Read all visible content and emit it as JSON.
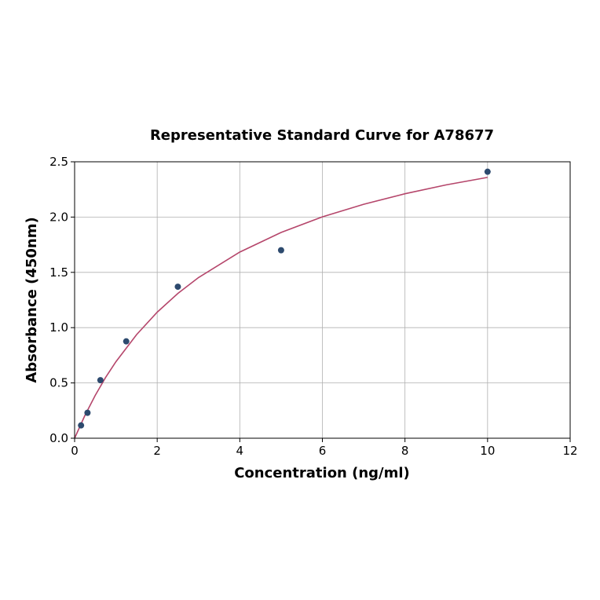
{
  "chart_data": {
    "type": "scatter",
    "title": "Representative Standard Curve for A78677",
    "xlabel": "Concentration (ng/ml)",
    "ylabel": "Absorbance (450nm)",
    "xlim": [
      0,
      12
    ],
    "ylim": [
      0,
      2.5
    ],
    "xticks": [
      "0",
      "2",
      "4",
      "6",
      "8",
      "10",
      "12"
    ],
    "yticks": [
      "0.0",
      "0.5",
      "1.0",
      "1.5",
      "2.0",
      "2.5"
    ],
    "grid": true,
    "legend": "none",
    "points": {
      "color": "#2d4a6e",
      "x": [
        0.156,
        0.312,
        0.625,
        1.25,
        2.5,
        5,
        10
      ],
      "y": [
        0.116,
        0.23,
        0.525,
        0.876,
        1.37,
        1.7,
        2.41
      ]
    },
    "fit_curve": {
      "color": "#b5466b",
      "x": [
        0,
        0.25,
        0.5,
        0.75,
        1,
        1.5,
        2,
        2.5,
        3,
        4,
        5,
        6,
        7,
        8,
        9,
        10
      ],
      "y": [
        0,
        0.206,
        0.388,
        0.549,
        0.692,
        0.937,
        1.14,
        1.31,
        1.453,
        1.683,
        1.861,
        2.002,
        2.116,
        2.211,
        2.291,
        2.359
      ]
    }
  }
}
